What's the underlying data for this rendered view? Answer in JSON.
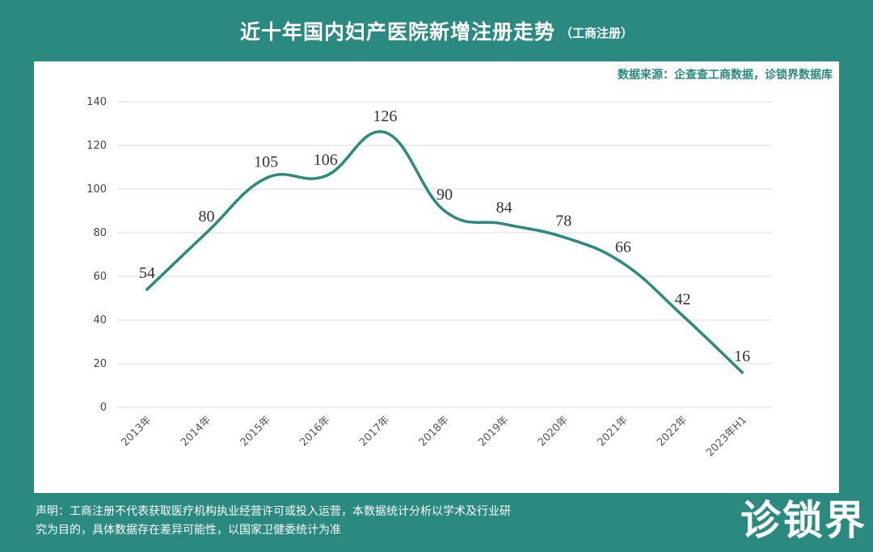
{
  "header": {
    "title": "近十年国内妇产医院新增注册走势",
    "subtitle": "（工商注册）"
  },
  "source": "数据来源：企查查工商数据，诊锁界数据库",
  "footer": {
    "disclaimer_line1": "声明：工商注册不代表获取医疗机构执业经营许可或投入运营，本数据统计分析以学术及行业研",
    "disclaimer_line2": "究为目的，具体数据存在差异可能性，以国家卫健委统计为准",
    "logo": "诊锁界"
  },
  "colors": {
    "line": "#2a8a80",
    "background": "#2a8a80",
    "grid": "#d9d9d9"
  },
  "chart_data": {
    "type": "line",
    "categories": [
      "2013年",
      "2014年",
      "2015年",
      "2016年",
      "2017年",
      "2018年",
      "2019年",
      "2020年",
      "2021年",
      "2022年",
      "2023年H1"
    ],
    "values": [
      54,
      80,
      105,
      106,
      126,
      90,
      84,
      78,
      66,
      42,
      16
    ],
    "ylim": [
      0,
      140
    ],
    "yticks": [
      0,
      20,
      40,
      60,
      80,
      100,
      120,
      140
    ],
    "grid": true,
    "data_labels": true,
    "legend": "none",
    "smooth": true
  }
}
